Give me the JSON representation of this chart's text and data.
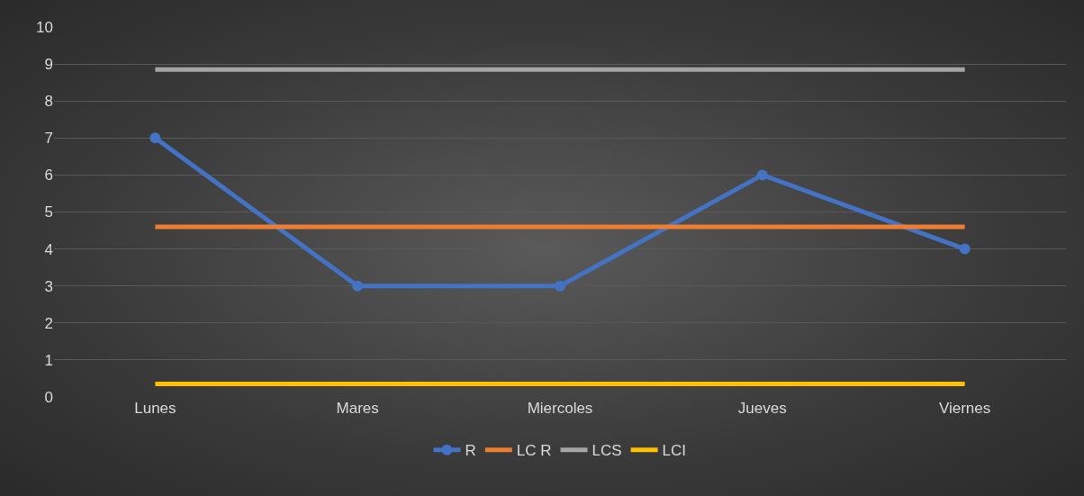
{
  "chart_data": {
    "type": "line",
    "categories": [
      "Lunes",
      "Mares",
      "Miercoles",
      "Jueves",
      "Viernes"
    ],
    "series": [
      {
        "name": "R",
        "color": "#4472c4",
        "values": [
          7,
          3,
          3,
          6,
          4
        ],
        "marker": "circle"
      },
      {
        "name": "LC R",
        "color": "#ed7d31",
        "values": [
          4.6,
          4.6,
          4.6,
          4.6,
          4.6
        ],
        "marker": "none"
      },
      {
        "name": "LCS",
        "color": "#a5a5a5",
        "values": [
          8.85,
          8.85,
          8.85,
          8.85,
          8.85
        ],
        "marker": "none"
      },
      {
        "name": "LCI",
        "color": "#ffc000",
        "values": [
          0.35,
          0.35,
          0.35,
          0.35,
          0.35
        ],
        "marker": "none"
      }
    ],
    "ylim": [
      0,
      10
    ],
    "yticks": [
      0,
      1,
      2,
      3,
      4,
      5,
      6,
      7,
      8,
      9,
      10
    ],
    "grid": "y",
    "legend": "bottom",
    "line_style": "solid"
  }
}
